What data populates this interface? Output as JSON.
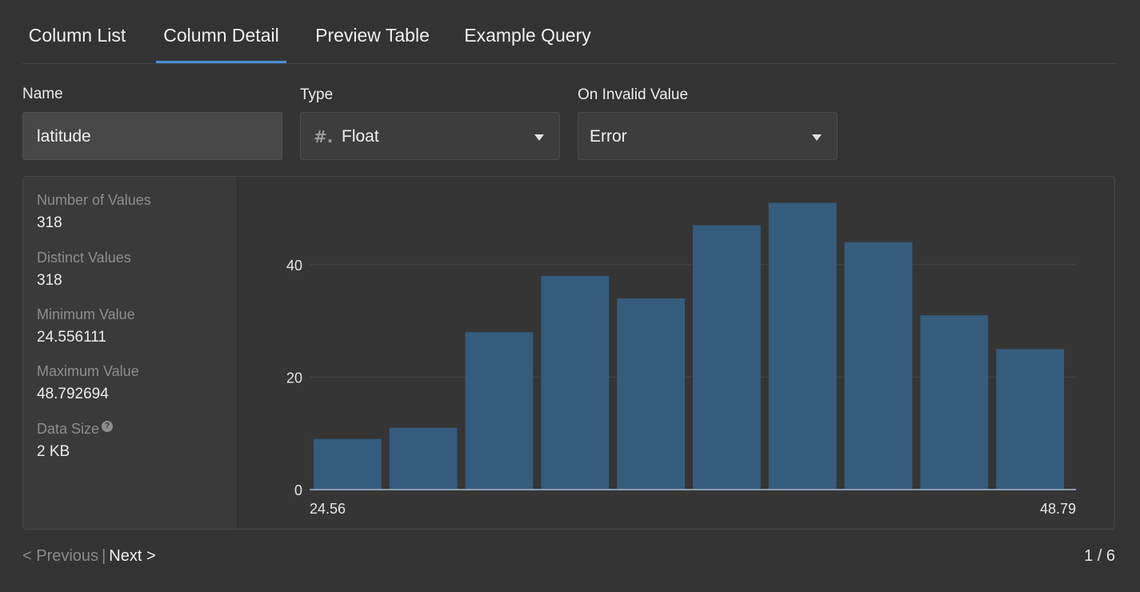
{
  "tabs": [
    {
      "label": "Column List"
    },
    {
      "label": "Column Detail",
      "active": true
    },
    {
      "label": "Preview Table"
    },
    {
      "label": "Example Query"
    }
  ],
  "form": {
    "name": {
      "label": "Name",
      "value": "latitude"
    },
    "type": {
      "label": "Type",
      "icon": "#.",
      "value": "Float"
    },
    "on_invalid": {
      "label": "On Invalid Value",
      "value": "Error"
    }
  },
  "stats": [
    {
      "label": "Number of Values",
      "value": "318"
    },
    {
      "label": "Distinct Values",
      "value": "318"
    },
    {
      "label": "Minimum Value",
      "value": "24.556111"
    },
    {
      "label": "Maximum Value",
      "value": "48.792694"
    },
    {
      "label": "Data Size",
      "value": "2 KB",
      "help": "?"
    }
  ],
  "chart_data": {
    "type": "bar",
    "title": "",
    "xlabel": "",
    "ylabel": "",
    "x_tick_labels": [
      "24.56",
      "48.79"
    ],
    "y_ticks": [
      0,
      20,
      40
    ],
    "ylim": [
      0,
      50
    ],
    "values": [
      9,
      11,
      28,
      38,
      34,
      47,
      51,
      44,
      31,
      25
    ],
    "bar_color": "#355c7d",
    "grid": true
  },
  "footer": {
    "previous": "< Previous",
    "separator": "|",
    "next": "Next >",
    "page": "1 / 6"
  },
  "colors": {
    "accent": "#4a8fd8",
    "background": "#333333"
  }
}
